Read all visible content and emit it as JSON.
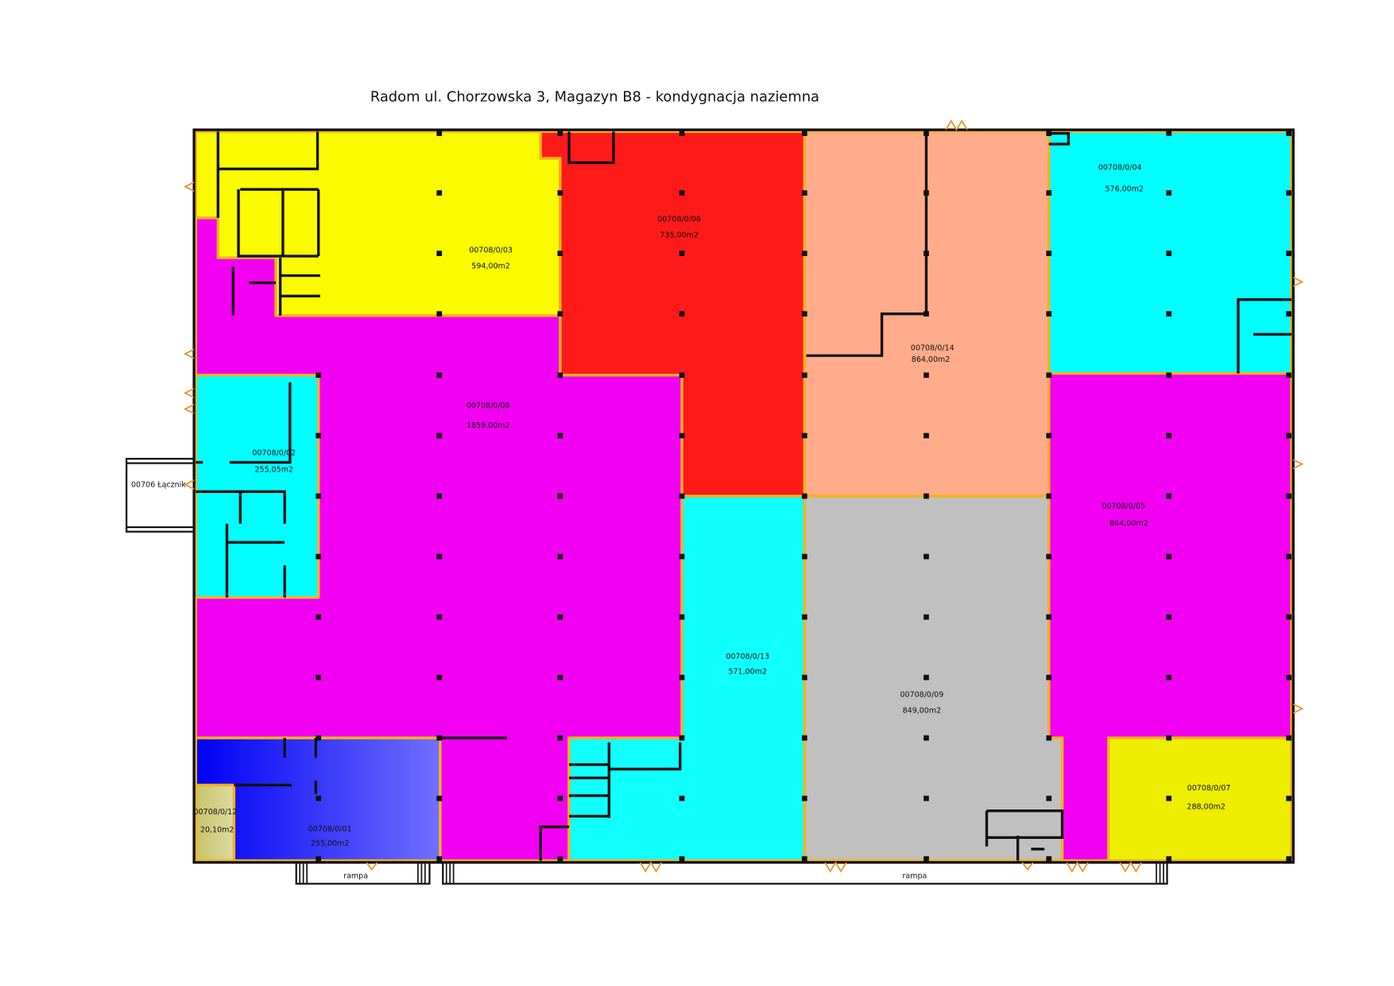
{
  "title": "Radom ul. Chorzowska 3, Magazyn B8 - kondygnacja naziemna",
  "connector": {
    "label": "00706 Łącznik"
  },
  "ramps": [
    {
      "label": "rampa"
    },
    {
      "label": "rampa"
    }
  ],
  "rooms": [
    {
      "id": "00708/0/03",
      "area": "594,00m2",
      "color": "#fafa00"
    },
    {
      "id": "00708/0/06",
      "area": "735,00m2",
      "color": "#ff1a1a"
    },
    {
      "id": "00708/0/14",
      "area": "864,00m2",
      "color": "#ffab8c"
    },
    {
      "id": "00708/0/04",
      "area": "576,00m2",
      "color": "#00ffff"
    },
    {
      "id": "00708/0/08",
      "area": "1859,00m2",
      "color": "#f200f2"
    },
    {
      "id": "00708/0/02",
      "area": "255,05m2",
      "color": "#00ffff"
    },
    {
      "id": "00708/0/05",
      "area": "864,00m2",
      "color": "#f200f2"
    },
    {
      "id": "00708/0/13",
      "area": "571,00m2",
      "color": "#10ffff"
    },
    {
      "id": "00708/0/09",
      "area": "849,00m2",
      "color": "#c0c0c0"
    },
    {
      "id": "00708/0/07",
      "area": "288,00m2",
      "color": "#eeee00"
    },
    {
      "id": "00708/0/12",
      "area": "20,10m2",
      "color": "#d4d28a"
    },
    {
      "id": "00708/0/01",
      "area": "255,00m2",
      "color": "#2020ff"
    }
  ],
  "colors": {
    "wall": "#111111",
    "partition": "#f2b21c",
    "door": "#f08a1c"
  }
}
